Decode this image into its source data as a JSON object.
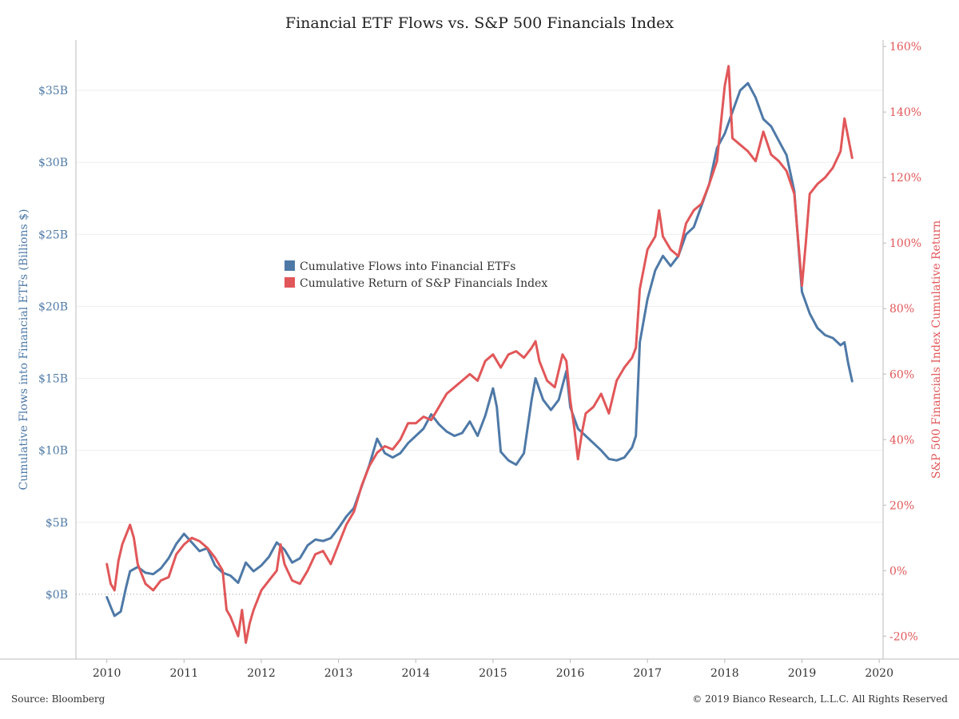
{
  "chart_data": {
    "type": "line",
    "title": "Financial ETF Flows vs. S&P 500 Financials Index",
    "ylabel": "Cumulative Flows into Financial ETFs (Billions $)",
    "y2label": "S&P 500 Financials Index Cumulative Return",
    "xlim": [
      2009.6,
      2020.05
    ],
    "ylim": [
      -4.5,
      38.5
    ],
    "y2lim": [
      -27,
      162
    ],
    "x_ticks": [
      "2010",
      "2011",
      "2012",
      "2013",
      "2014",
      "2015",
      "2016",
      "2017",
      "2018",
      "2019",
      "2020"
    ],
    "y_ticks": [
      "$0B",
      "$5B",
      "$10B",
      "$15B",
      "$20B",
      "$25B",
      "$30B",
      "$35B"
    ],
    "y2_ticks": [
      "-20%",
      "0%",
      "20%",
      "40%",
      "60%",
      "80%",
      "100%",
      "120%",
      "140%",
      "160%"
    ],
    "legend_position": "center-left",
    "grid": true,
    "colors": {
      "flows": "#4e79a7",
      "returns": "#e15759"
    },
    "series": [
      {
        "name": "Cumulative Flows into Financial ETFs",
        "axis": "left",
        "points": [
          [
            2010.0,
            -0.2
          ],
          [
            2010.06,
            -1.0
          ],
          [
            2010.1,
            -1.5
          ],
          [
            2010.18,
            -1.2
          ],
          [
            2010.25,
            0.5
          ],
          [
            2010.3,
            1.6
          ],
          [
            2010.4,
            1.9
          ],
          [
            2010.5,
            1.5
          ],
          [
            2010.6,
            1.4
          ],
          [
            2010.7,
            1.8
          ],
          [
            2010.8,
            2.5
          ],
          [
            2010.9,
            3.5
          ],
          [
            2011.0,
            4.2
          ],
          [
            2011.1,
            3.6
          ],
          [
            2011.2,
            3.0
          ],
          [
            2011.3,
            3.2
          ],
          [
            2011.4,
            2.0
          ],
          [
            2011.5,
            1.5
          ],
          [
            2011.6,
            1.3
          ],
          [
            2011.7,
            0.8
          ],
          [
            2011.8,
            2.2
          ],
          [
            2011.9,
            1.6
          ],
          [
            2012.0,
            2.0
          ],
          [
            2012.1,
            2.6
          ],
          [
            2012.2,
            3.6
          ],
          [
            2012.3,
            3.1
          ],
          [
            2012.4,
            2.2
          ],
          [
            2012.5,
            2.5
          ],
          [
            2012.6,
            3.4
          ],
          [
            2012.7,
            3.8
          ],
          [
            2012.8,
            3.7
          ],
          [
            2012.9,
            3.9
          ],
          [
            2013.0,
            4.6
          ],
          [
            2013.1,
            5.4
          ],
          [
            2013.2,
            6.0
          ],
          [
            2013.3,
            7.5
          ],
          [
            2013.4,
            9.0
          ],
          [
            2013.5,
            10.8
          ],
          [
            2013.6,
            9.8
          ],
          [
            2013.7,
            9.5
          ],
          [
            2013.8,
            9.8
          ],
          [
            2013.9,
            10.5
          ],
          [
            2014.0,
            11.0
          ],
          [
            2014.1,
            11.5
          ],
          [
            2014.2,
            12.5
          ],
          [
            2014.3,
            11.8
          ],
          [
            2014.4,
            11.3
          ],
          [
            2014.5,
            11.0
          ],
          [
            2014.6,
            11.2
          ],
          [
            2014.7,
            12.0
          ],
          [
            2014.8,
            11.0
          ],
          [
            2014.9,
            12.4
          ],
          [
            2015.0,
            14.3
          ],
          [
            2015.05,
            13.0
          ],
          [
            2015.1,
            9.9
          ],
          [
            2015.2,
            9.3
          ],
          [
            2015.3,
            9.0
          ],
          [
            2015.4,
            9.8
          ],
          [
            2015.5,
            13.5
          ],
          [
            2015.55,
            15.0
          ],
          [
            2015.65,
            13.5
          ],
          [
            2015.75,
            12.8
          ],
          [
            2015.85,
            13.5
          ],
          [
            2015.95,
            15.5
          ],
          [
            2016.0,
            13.0
          ],
          [
            2016.1,
            11.5
          ],
          [
            2016.2,
            11.0
          ],
          [
            2016.3,
            10.5
          ],
          [
            2016.4,
            10.0
          ],
          [
            2016.5,
            9.4
          ],
          [
            2016.6,
            9.3
          ],
          [
            2016.7,
            9.5
          ],
          [
            2016.8,
            10.2
          ],
          [
            2016.85,
            11.0
          ],
          [
            2016.9,
            17.5
          ],
          [
            2017.0,
            20.5
          ],
          [
            2017.1,
            22.5
          ],
          [
            2017.2,
            23.5
          ],
          [
            2017.3,
            22.8
          ],
          [
            2017.4,
            23.5
          ],
          [
            2017.5,
            25.0
          ],
          [
            2017.6,
            25.5
          ],
          [
            2017.7,
            27.0
          ],
          [
            2017.8,
            28.5
          ],
          [
            2017.9,
            31.0
          ],
          [
            2018.0,
            32.0
          ],
          [
            2018.1,
            33.5
          ],
          [
            2018.2,
            35.0
          ],
          [
            2018.3,
            35.5
          ],
          [
            2018.4,
            34.5
          ],
          [
            2018.5,
            33.0
          ],
          [
            2018.6,
            32.5
          ],
          [
            2018.7,
            31.5
          ],
          [
            2018.8,
            30.5
          ],
          [
            2018.9,
            28.0
          ],
          [
            2019.0,
            21.0
          ],
          [
            2019.1,
            19.5
          ],
          [
            2019.2,
            18.5
          ],
          [
            2019.3,
            18.0
          ],
          [
            2019.4,
            17.8
          ],
          [
            2019.5,
            17.3
          ],
          [
            2019.55,
            17.5
          ],
          [
            2019.6,
            16.0
          ],
          [
            2019.65,
            14.8
          ]
        ]
      },
      {
        "name": "Cumulative Return of S&P Financials Index",
        "axis": "right",
        "points": [
          [
            2010.0,
            2
          ],
          [
            2010.05,
            -4
          ],
          [
            2010.1,
            -6
          ],
          [
            2010.15,
            3
          ],
          [
            2010.2,
            8
          ],
          [
            2010.3,
            14
          ],
          [
            2010.35,
            10
          ],
          [
            2010.4,
            2
          ],
          [
            2010.5,
            -4
          ],
          [
            2010.6,
            -6
          ],
          [
            2010.7,
            -3
          ],
          [
            2010.8,
            -2
          ],
          [
            2010.9,
            5
          ],
          [
            2011.0,
            8
          ],
          [
            2011.1,
            10
          ],
          [
            2011.2,
            9
          ],
          [
            2011.3,
            7
          ],
          [
            2011.4,
            4
          ],
          [
            2011.5,
            0
          ],
          [
            2011.55,
            -12
          ],
          [
            2011.6,
            -14
          ],
          [
            2011.7,
            -20
          ],
          [
            2011.75,
            -12
          ],
          [
            2011.8,
            -22
          ],
          [
            2011.85,
            -16
          ],
          [
            2011.9,
            -12
          ],
          [
            2012.0,
            -6
          ],
          [
            2012.1,
            -3
          ],
          [
            2012.2,
            0
          ],
          [
            2012.25,
            8
          ],
          [
            2012.3,
            2
          ],
          [
            2012.4,
            -3
          ],
          [
            2012.5,
            -4
          ],
          [
            2012.6,
            0
          ],
          [
            2012.7,
            5
          ],
          [
            2012.8,
            6
          ],
          [
            2012.9,
            2
          ],
          [
            2013.0,
            8
          ],
          [
            2013.1,
            14
          ],
          [
            2013.2,
            18
          ],
          [
            2013.3,
            26
          ],
          [
            2013.4,
            32
          ],
          [
            2013.5,
            36
          ],
          [
            2013.6,
            38
          ],
          [
            2013.7,
            37
          ],
          [
            2013.8,
            40
          ],
          [
            2013.9,
            45
          ],
          [
            2014.0,
            45
          ],
          [
            2014.1,
            47
          ],
          [
            2014.2,
            46
          ],
          [
            2014.3,
            50
          ],
          [
            2014.4,
            54
          ],
          [
            2014.5,
            56
          ],
          [
            2014.6,
            58
          ],
          [
            2014.7,
            60
          ],
          [
            2014.8,
            58
          ],
          [
            2014.9,
            64
          ],
          [
            2015.0,
            66
          ],
          [
            2015.1,
            62
          ],
          [
            2015.2,
            66
          ],
          [
            2015.3,
            67
          ],
          [
            2015.4,
            65
          ],
          [
            2015.5,
            68
          ],
          [
            2015.55,
            70
          ],
          [
            2015.6,
            64
          ],
          [
            2015.7,
            58
          ],
          [
            2015.8,
            56
          ],
          [
            2015.9,
            66
          ],
          [
            2015.95,
            64
          ],
          [
            2016.0,
            52
          ],
          [
            2016.05,
            44
          ],
          [
            2016.1,
            34
          ],
          [
            2016.15,
            42
          ],
          [
            2016.2,
            48
          ],
          [
            2016.3,
            50
          ],
          [
            2016.4,
            54
          ],
          [
            2016.5,
            48
          ],
          [
            2016.6,
            58
          ],
          [
            2016.7,
            62
          ],
          [
            2016.8,
            65
          ],
          [
            2016.85,
            68
          ],
          [
            2016.9,
            86
          ],
          [
            2017.0,
            98
          ],
          [
            2017.1,
            102
          ],
          [
            2017.15,
            110
          ],
          [
            2017.2,
            102
          ],
          [
            2017.3,
            98
          ],
          [
            2017.4,
            96
          ],
          [
            2017.5,
            106
          ],
          [
            2017.6,
            110
          ],
          [
            2017.7,
            112
          ],
          [
            2017.8,
            118
          ],
          [
            2017.9,
            125
          ],
          [
            2018.0,
            148
          ],
          [
            2018.05,
            154
          ],
          [
            2018.1,
            132
          ],
          [
            2018.2,
            130
          ],
          [
            2018.3,
            128
          ],
          [
            2018.4,
            125
          ],
          [
            2018.5,
            134
          ],
          [
            2018.6,
            127
          ],
          [
            2018.7,
            125
          ],
          [
            2018.8,
            122
          ],
          [
            2018.9,
            115
          ],
          [
            2019.0,
            87
          ],
          [
            2019.05,
            100
          ],
          [
            2019.1,
            115
          ],
          [
            2019.2,
            118
          ],
          [
            2019.3,
            120
          ],
          [
            2019.4,
            123
          ],
          [
            2019.5,
            128
          ],
          [
            2019.55,
            138
          ],
          [
            2019.6,
            132
          ],
          [
            2019.65,
            126
          ]
        ]
      }
    ]
  },
  "source": "Source: Bloomberg",
  "copyright": "© 2019 Bianco Research, L.L.C. All Rights Reserved"
}
